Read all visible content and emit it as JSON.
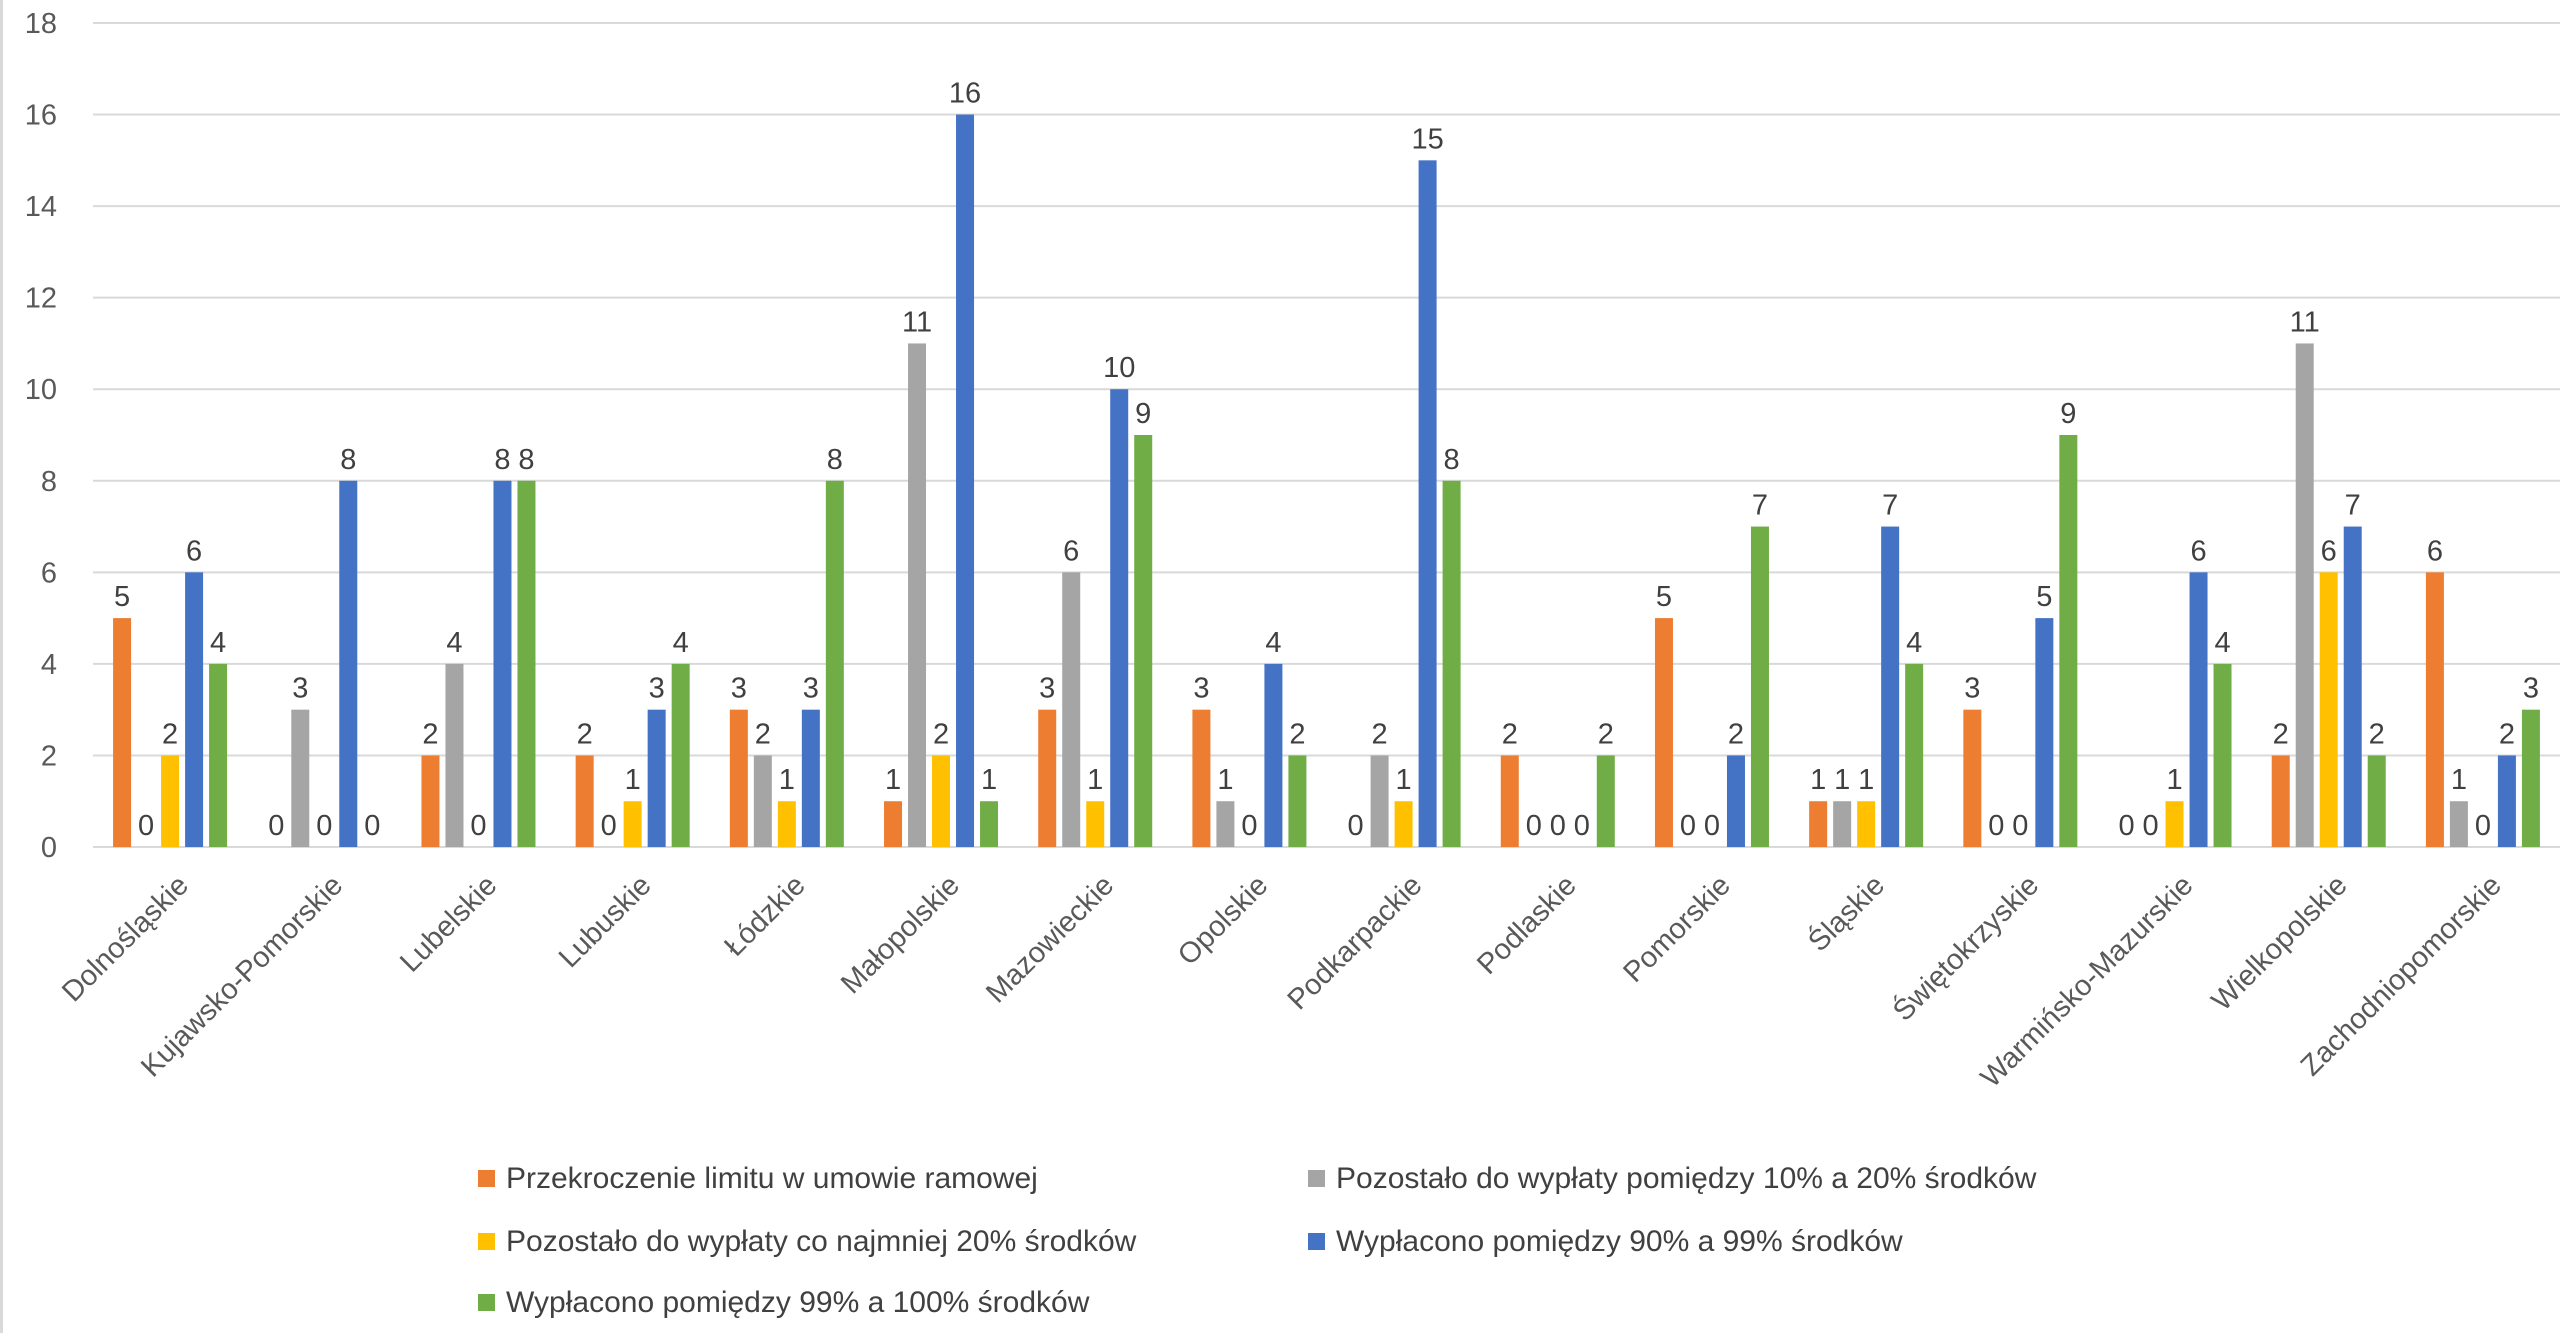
{
  "chart_data": {
    "type": "bar",
    "title": "",
    "xlabel": "",
    "ylabel": "",
    "ylim": [
      0,
      18
    ],
    "yticks": [
      0,
      2,
      4,
      6,
      8,
      10,
      12,
      14,
      16,
      18
    ],
    "grid": true,
    "legend_position": "bottom",
    "categories": [
      "Dolnośląskie",
      "Kujawsko-Pomorskie",
      "Lubelskie",
      "Lubuskie",
      "Łódzkie",
      "Małopolskie",
      "Mazowieckie",
      "Opolskie",
      "Podkarpackie",
      "Podlaskie",
      "Pomorskie",
      "Śląskie",
      "Świętokrzyskie",
      "Warmińsko-Mazurskie",
      "Wielkopolskie",
      "Zachodniopomorskie"
    ],
    "series": [
      {
        "name": "Przekroczenie limitu w umowie ramowej",
        "color": "#ed7d31",
        "values": [
          5,
          null,
          2,
          2,
          3,
          1,
          3,
          3,
          null,
          2,
          5,
          1,
          3,
          0,
          2,
          6
        ]
      },
      {
        "name": "Pozostało do wypłaty pomiędzy 10% a 20% środków",
        "color": "#a5a5a5",
        "values": [
          null,
          3,
          4,
          null,
          2,
          11,
          6,
          1,
          2,
          0,
          null,
          1,
          null,
          0,
          11,
          1
        ]
      },
      {
        "name": "Pozostało do wypłaty co najmniej 20% środków",
        "color": "#ffc000",
        "values": [
          2,
          0,
          null,
          1,
          1,
          2,
          1,
          null,
          1,
          0,
          null,
          1,
          null,
          1,
          6,
          null
        ]
      },
      {
        "name": "Wypłacono pomiędzy 90% a 99% środków",
        "color": "#4472c4",
        "values": [
          6,
          8,
          8,
          3,
          3,
          16,
          10,
          4,
          15,
          0,
          2,
          7,
          5,
          6,
          7,
          2
        ]
      },
      {
        "name": "Wypłacono pomiędzy 99% a 100% środków",
        "color": "#70ad47",
        "values": [
          4,
          0,
          8,
          4,
          8,
          1,
          9,
          2,
          8,
          2,
          7,
          4,
          9,
          4,
          2,
          3
        ]
      }
    ],
    "zero_labels": [
      {
        "category": 0,
        "series": 1,
        "label": "0"
      },
      {
        "category": 1,
        "series": 0,
        "label": "0"
      },
      {
        "category": 2,
        "series": 2,
        "label": "0"
      },
      {
        "category": 3,
        "series": 1,
        "label": "0"
      },
      {
        "category": 7,
        "series": 2,
        "label": "0"
      },
      {
        "category": 8,
        "series": 0,
        "label": "0"
      },
      {
        "category": 10,
        "series": 1,
        "label": "0"
      },
      {
        "category": 10,
        "series": 2,
        "label": "0"
      },
      {
        "category": 12,
        "series": 1,
        "label": "0"
      },
      {
        "category": 12,
        "series": 2,
        "label": "0"
      },
      {
        "category": 15,
        "series": 2,
        "label": "0"
      }
    ]
  }
}
